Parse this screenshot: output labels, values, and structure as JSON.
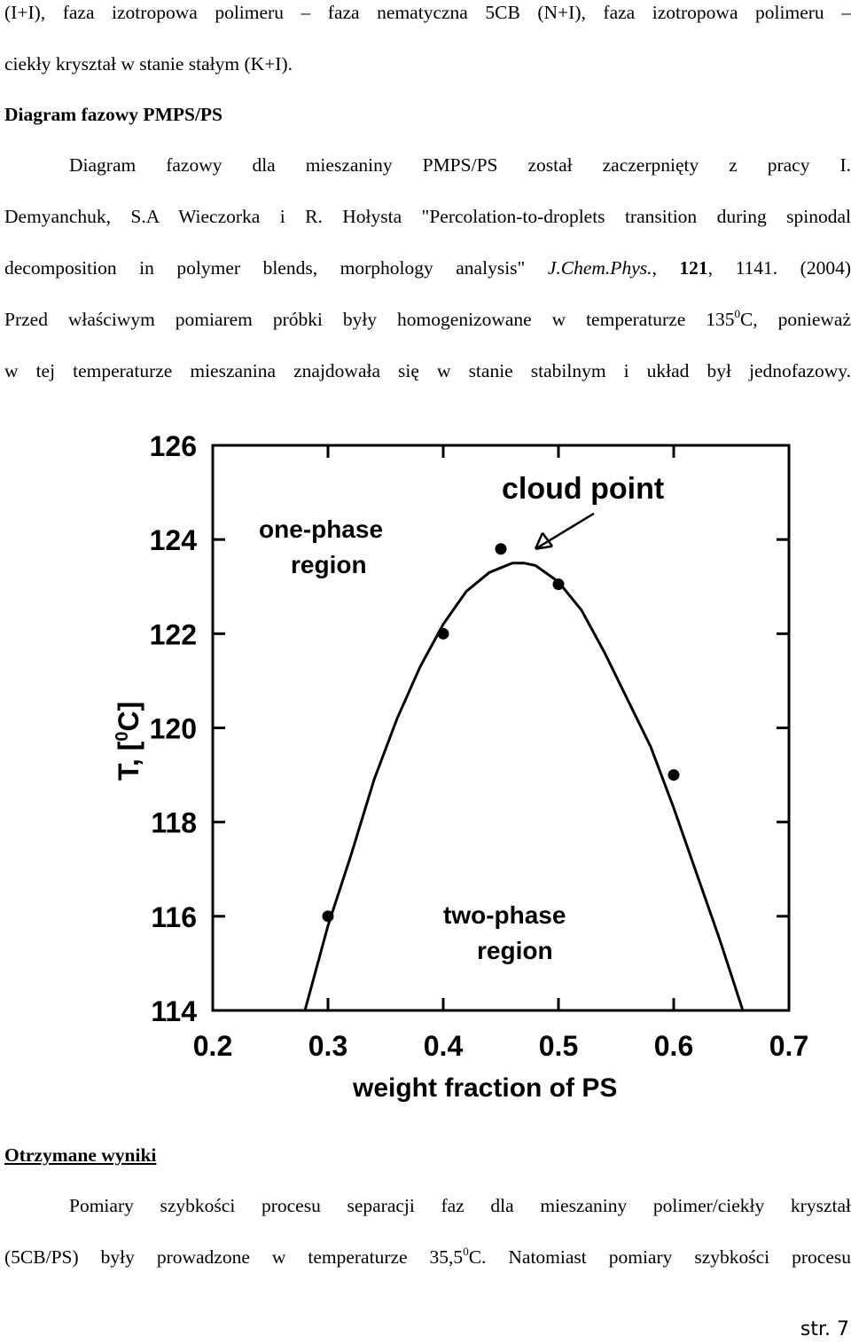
{
  "paragraph1": {
    "line1": "(I+I), faza izotropowa polimeru – faza nematyczna 5CB (N+I), faza izotropowa polimeru –",
    "line2": "ciekły kryształ w stanie stałym (K+I)."
  },
  "section1_heading": "Diagram fazowy PMPS/PS",
  "paragraph2": {
    "line1": "Diagram fazowy dla mieszaniny PMPS/PS został zaczerpnięty z pracy I.",
    "line2": "Demyanchuk, S.A Wieczorka i R. Hołysta \"Percolation-to-droplets transition during spinodal",
    "line3_a": "decomposition in polymer blends, morphology analysis\" ",
    "line3_journal": "J.Chem.Phys.",
    "line3_b": ", ",
    "line3_volume": "121",
    "line3_c": ", 1141. (2004)",
    "line4_a": "Przed właściwym pomiarem próbki były homogenizowane w temperaturze 135",
    "line4_sup": "0",
    "line4_b": "C, ponieważ",
    "line5": "w tej temperaturze mieszanina znajdowała się w stanie stabilnym i układ był jednofazowy."
  },
  "chart_data": {
    "type": "scatter",
    "xlabel": "weight fraction of PS",
    "ylabel_prefix": "T, [",
    "ylabel_sup": "0",
    "ylabel_suffix": "C]",
    "xlim": [
      0.2,
      0.7
    ],
    "ylim": [
      114,
      126
    ],
    "x_ticks": [
      0.2,
      0.3,
      0.4,
      0.5,
      0.6,
      0.7
    ],
    "x_tick_labels": [
      "0.2",
      "0.3",
      "0.4",
      "0.5",
      "0.6",
      "0.7"
    ],
    "y_ticks": [
      114,
      116,
      118,
      120,
      122,
      124,
      126
    ],
    "y_tick_labels": [
      "114",
      "116",
      "118",
      "120",
      "122",
      "124",
      "126"
    ],
    "grid": false,
    "points": [
      {
        "x": 0.3,
        "y": 116.0
      },
      {
        "x": 0.4,
        "y": 122.0
      },
      {
        "x": 0.45,
        "y": 123.8
      },
      {
        "x": 0.5,
        "y": 123.05
      },
      {
        "x": 0.6,
        "y": 119.0
      }
    ],
    "curve": {
      "x": [
        0.28,
        0.3,
        0.32,
        0.34,
        0.36,
        0.38,
        0.4,
        0.42,
        0.44,
        0.46,
        0.47,
        0.48,
        0.5,
        0.52,
        0.54,
        0.56,
        0.58,
        0.6,
        0.62,
        0.64,
        0.66
      ],
      "y": [
        114.0,
        115.8,
        117.3,
        118.9,
        120.2,
        121.3,
        122.2,
        122.9,
        123.3,
        123.5,
        123.5,
        123.45,
        123.1,
        122.5,
        121.6,
        120.6,
        119.6,
        118.3,
        116.9,
        115.5,
        114.0
      ]
    },
    "annotations": {
      "cloud_point": "cloud point",
      "one_phase_1": "one-phase",
      "one_phase_2": "region",
      "two_phase_1": "two-phase",
      "two_phase_2": "region"
    },
    "arrow_target": {
      "x": 0.48,
      "y": 123.8
    }
  },
  "section2_heading": "Otrzymane wyniki",
  "paragraph3": {
    "line1": "Pomiary szybkości procesu separacji faz dla mieszaniny polimer/ciekły kryształ",
    "line2_a": "(5CB/PS) były prowadzone w temperaturze 35,5",
    "line2_sup": "0",
    "line2_b": "C. Natomiast pomiary szybkości procesu"
  },
  "page_number": "str. 7"
}
